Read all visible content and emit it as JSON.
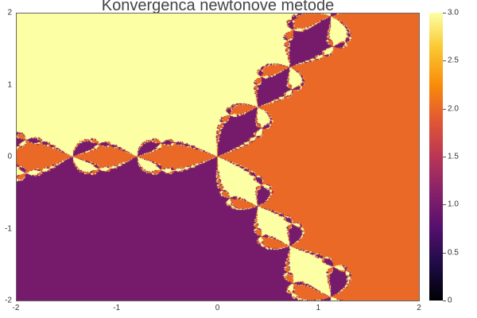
{
  "chart_data": {
    "type": "heatmap",
    "title": "Konvergenca newtonove metode",
    "xlim": [
      -2,
      2
    ],
    "ylim": [
      -2,
      2
    ],
    "x_ticks": [
      "-2",
      "-1",
      "0",
      "1",
      "2"
    ],
    "y_ticks": [
      "2",
      "1",
      "0",
      "-1",
      "-2"
    ],
    "colormap": "inferno",
    "colorbar": {
      "range": [
        0,
        3
      ],
      "ticks": [
        "3.0",
        "2.5",
        "2.0",
        "1.5",
        "1.0",
        "0.5",
        "0"
      ]
    },
    "regions": [
      {
        "area": "right",
        "value": 2,
        "color": "#ed6925"
      },
      {
        "area": "upper-left",
        "value": 3,
        "color": "#fcffa4"
      },
      {
        "area": "lower-left",
        "value": 1,
        "color": "#781c6d"
      },
      {
        "area": "non-converged points",
        "value": 0,
        "color": "#000004"
      }
    ]
  }
}
